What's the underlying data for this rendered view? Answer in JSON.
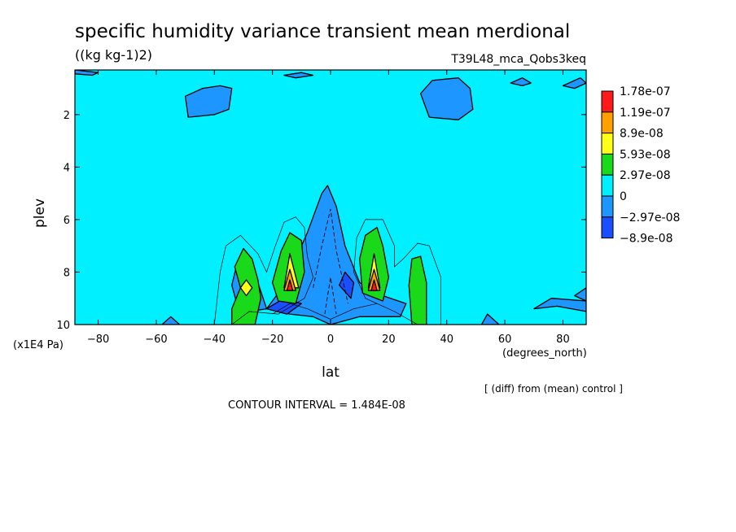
{
  "chart_data": {
    "type": "contour",
    "title": "specific humidity variance transient mean merdional",
    "units": "((kg kg-1)2)",
    "experiment": "T39L48_mca_Qobs3keq",
    "xlabel": "lat",
    "xunits": "(degrees_north)",
    "ylabel": "plev",
    "yunits": "(x1E4 Pa)",
    "xlim": [
      -88,
      88
    ],
    "ylim": [
      10,
      0.3
    ],
    "x_ticks": [
      -80,
      -60,
      -40,
      -20,
      0,
      20,
      40,
      60,
      80
    ],
    "y_ticks": [
      2,
      4,
      6,
      8,
      10
    ],
    "x_tick_labels": [
      "−80",
      "−60",
      "−40",
      "−20",
      "0",
      "20",
      "40",
      "60",
      "80"
    ],
    "y_tick_labels": [
      "2",
      "4",
      "6",
      "8",
      "10"
    ],
    "legend": {
      "labels": [
        "1.78e-07",
        "1.19e-07",
        "8.9e-08",
        "5.93e-08",
        "2.97e-08",
        "0",
        "−2.97e-08",
        "−8.9e-08"
      ],
      "colors": [
        "#ff1a1a",
        "#ff9f00",
        "#ffff1a",
        "#1ad81a",
        "#00f0ff",
        "#1e96ff",
        "#1a4fff"
      ]
    },
    "background_color": "#00f0ff",
    "regions": [
      {
        "level": "negative",
        "color": "#1e96ff",
        "points": [
          [
            -88,
            0.3
          ],
          [
            -80,
            0.4
          ],
          [
            -82,
            0.5
          ],
          [
            -88,
            0.45
          ]
        ]
      },
      {
        "level": "negative",
        "color": "#1e96ff",
        "points": [
          [
            -49,
            2.1
          ],
          [
            -50,
            1.3
          ],
          [
            -44,
            1.0
          ],
          [
            -38,
            0.9
          ],
          [
            -34,
            1.0
          ],
          [
            -35,
            1.8
          ],
          [
            -40,
            2.0
          ]
        ]
      },
      {
        "level": "negative",
        "color": "#1e96ff",
        "points": [
          [
            -16,
            0.5
          ],
          [
            -10,
            0.4
          ],
          [
            -6,
            0.5
          ],
          [
            -12,
            0.6
          ]
        ]
      },
      {
        "level": "negative",
        "color": "#1e96ff",
        "points": [
          [
            31,
            1.2
          ],
          [
            35,
            0.7
          ],
          [
            44,
            0.6
          ],
          [
            48,
            1.0
          ],
          [
            49,
            1.8
          ],
          [
            44,
            2.2
          ],
          [
            34,
            2.1
          ]
        ]
      },
      {
        "level": "negative",
        "color": "#1e96ff",
        "points": [
          [
            62,
            0.8
          ],
          [
            66,
            0.6
          ],
          [
            69,
            0.8
          ],
          [
            66,
            0.9
          ]
        ]
      },
      {
        "level": "negative",
        "color": "#1e96ff",
        "points": [
          [
            80,
            0.9
          ],
          [
            86,
            0.6
          ],
          [
            88,
            0.8
          ],
          [
            84,
            1.0
          ]
        ]
      },
      {
        "level": "negative",
        "color": "#1e96ff",
        "points": [
          [
            70,
            9.4
          ],
          [
            76,
            9.0
          ],
          [
            88,
            9.1
          ],
          [
            88,
            9.5
          ],
          [
            78,
            9.3
          ]
        ]
      },
      {
        "level": "negative",
        "color": "#1e96ff",
        "points": [
          [
            84,
            8.9
          ],
          [
            88,
            8.6
          ],
          [
            88,
            9.1
          ]
        ]
      },
      {
        "level": "negative",
        "color": "#1e96ff",
        "points": [
          [
            -58,
            10
          ],
          [
            -55,
            9.7
          ],
          [
            -52,
            10
          ]
        ]
      },
      {
        "level": "negative",
        "color": "#1e96ff",
        "points": [
          [
            52,
            10
          ],
          [
            54,
            9.6
          ],
          [
            58,
            10
          ]
        ]
      },
      {
        "level": "negative",
        "color": "#1e96ff",
        "points": [
          [
            -22,
            9.4
          ],
          [
            -16,
            8.5
          ],
          [
            -8,
            6.5
          ],
          [
            -3,
            5.0
          ],
          [
            -1,
            4.7
          ],
          [
            2,
            5.5
          ],
          [
            5,
            7.0
          ],
          [
            10,
            8.4
          ],
          [
            18,
            8.9
          ],
          [
            26,
            9.2
          ],
          [
            24,
            9.7
          ],
          [
            10,
            9.7
          ],
          [
            0,
            10.0
          ],
          [
            -6,
            9.7
          ],
          [
            -14,
            9.6
          ]
        ]
      },
      {
        "level": "negative",
        "color": "#1e96ff",
        "points": [
          [
            -25,
            8.4
          ],
          [
            -28,
            8.0
          ],
          [
            -30,
            7.4
          ],
          [
            -32,
            7.6
          ],
          [
            -34,
            8.5
          ],
          [
            -32,
            9.3
          ],
          [
            -28,
            9.5
          ],
          [
            -22,
            9.4
          ]
        ]
      },
      {
        "level": "strong-negative",
        "color": "#1a4fff",
        "points": [
          [
            -22,
            9.4
          ],
          [
            -16,
            9.0
          ],
          [
            -10,
            9.2
          ],
          [
            -15,
            9.6
          ]
        ]
      },
      {
        "level": "strong-negative",
        "color": "#1a4fff",
        "points": [
          [
            5,
            8.0
          ],
          [
            8,
            8.4
          ],
          [
            7,
            9.0
          ],
          [
            3,
            8.5
          ]
        ]
      },
      {
        "level": "positive",
        "color": "#1ad81a",
        "points": [
          [
            -34,
            9.4
          ],
          [
            -31,
            8.6
          ],
          [
            -33,
            7.8
          ],
          [
            -30,
            7.1
          ],
          [
            -27,
            7.5
          ],
          [
            -25,
            8.3
          ],
          [
            -24,
            9.0
          ],
          [
            -26,
            10
          ],
          [
            -34,
            10
          ]
        ]
      },
      {
        "level": "positive",
        "color": "#1ad81a",
        "points": [
          [
            -18,
            9.1
          ],
          [
            -20,
            8.4
          ],
          [
            -17,
            7.2
          ],
          [
            -14,
            6.5
          ],
          [
            -10,
            6.8
          ],
          [
            -9,
            8.0
          ],
          [
            -12,
            9.2
          ]
        ]
      },
      {
        "level": "positive",
        "color": "#1ad81a",
        "points": [
          [
            11,
            8.8
          ],
          [
            10,
            7.5
          ],
          [
            12,
            6.6
          ],
          [
            16,
            6.3
          ],
          [
            18,
            7.0
          ],
          [
            20,
            8.2
          ],
          [
            18,
            9.1
          ]
        ]
      },
      {
        "level": "positive",
        "color": "#1ad81a",
        "points": [
          [
            28,
            10
          ],
          [
            27,
            8.5
          ],
          [
            28,
            7.5
          ],
          [
            31,
            7.4
          ],
          [
            33,
            8.4
          ],
          [
            33,
            10
          ]
        ]
      },
      {
        "level": "moderate",
        "color": "#ffff1a",
        "points": [
          [
            -31,
            8.6
          ],
          [
            -29,
            8.3
          ],
          [
            -27,
            8.6
          ],
          [
            -29,
            8.9
          ]
        ]
      },
      {
        "level": "moderate",
        "color": "#ffff1a",
        "points": [
          [
            -16,
            8.6
          ],
          [
            -14,
            7.3
          ],
          [
            -11,
            8.6
          ]
        ]
      },
      {
        "level": "moderate",
        "color": "#ffff1a",
        "points": [
          [
            13,
            8.6
          ],
          [
            15,
            7.3
          ],
          [
            17,
            8.6
          ]
        ]
      },
      {
        "level": "high",
        "color": "#ff9f00",
        "points": [
          [
            -16,
            8.7
          ],
          [
            -14,
            7.9
          ],
          [
            -12,
            8.7
          ]
        ]
      },
      {
        "level": "high",
        "color": "#ff9f00",
        "points": [
          [
            13,
            8.7
          ],
          [
            15,
            7.9
          ],
          [
            17,
            8.7
          ]
        ]
      },
      {
        "level": "max",
        "color": "#ff1a1a",
        "points": [
          [
            -15,
            8.7
          ],
          [
            -14,
            8.3
          ],
          [
            -13,
            8.7
          ]
        ]
      },
      {
        "level": "max",
        "color": "#ff1a1a",
        "points": [
          [
            14,
            8.7
          ],
          [
            15,
            8.3
          ],
          [
            16,
            8.7
          ]
        ]
      }
    ],
    "contours": [
      [
        [
          -40,
          10
        ],
        [
          -38,
          8
        ],
        [
          -36,
          7.0
        ],
        [
          -31,
          6.6
        ],
        [
          -25,
          7.3
        ],
        [
          -22,
          8.0
        ],
        [
          -19,
          7.0
        ],
        [
          -16,
          6.1
        ],
        [
          -12,
          5.9
        ],
        [
          -9,
          6.3
        ],
        [
          -8,
          7.4
        ],
        [
          -6,
          8.2
        ],
        [
          -9,
          9.0
        ],
        [
          -18,
          9.6
        ],
        [
          -28,
          9.5
        ],
        [
          -34,
          10
        ]
      ],
      [
        [
          38,
          10
        ],
        [
          38,
          8.2
        ],
        [
          34,
          7.0
        ],
        [
          30,
          6.9
        ],
        [
          25,
          7.5
        ],
        [
          22,
          7.8
        ],
        [
          22,
          7.0
        ],
        [
          18,
          6.0
        ],
        [
          12,
          6.0
        ],
        [
          9,
          6.7
        ],
        [
          8,
          8.0
        ],
        [
          12,
          9.0
        ],
        [
          22,
          9.5
        ],
        [
          30,
          10
        ]
      ],
      [
        [
          -20,
          9.6
        ],
        [
          -14,
          9.2
        ],
        [
          -8,
          9.4
        ],
        [
          0,
          9.8
        ],
        [
          8,
          9.4
        ],
        [
          16,
          9.2
        ]
      ]
    ],
    "dashed_contours": [
      [
        [
          -6,
          8.6
        ],
        [
          -3,
          7.0
        ],
        [
          0,
          5.6
        ],
        [
          2,
          7.2
        ],
        [
          6,
          9.2
        ]
      ],
      [
        [
          -2,
          9.6
        ],
        [
          0,
          8.2
        ],
        [
          2,
          9.6
        ]
      ]
    ],
    "annotations": [
      {
        "text": "[ (diff) from (mean) control ]"
      },
      {
        "text": "CONTOUR INTERVAL = 1.484E-08"
      }
    ]
  }
}
